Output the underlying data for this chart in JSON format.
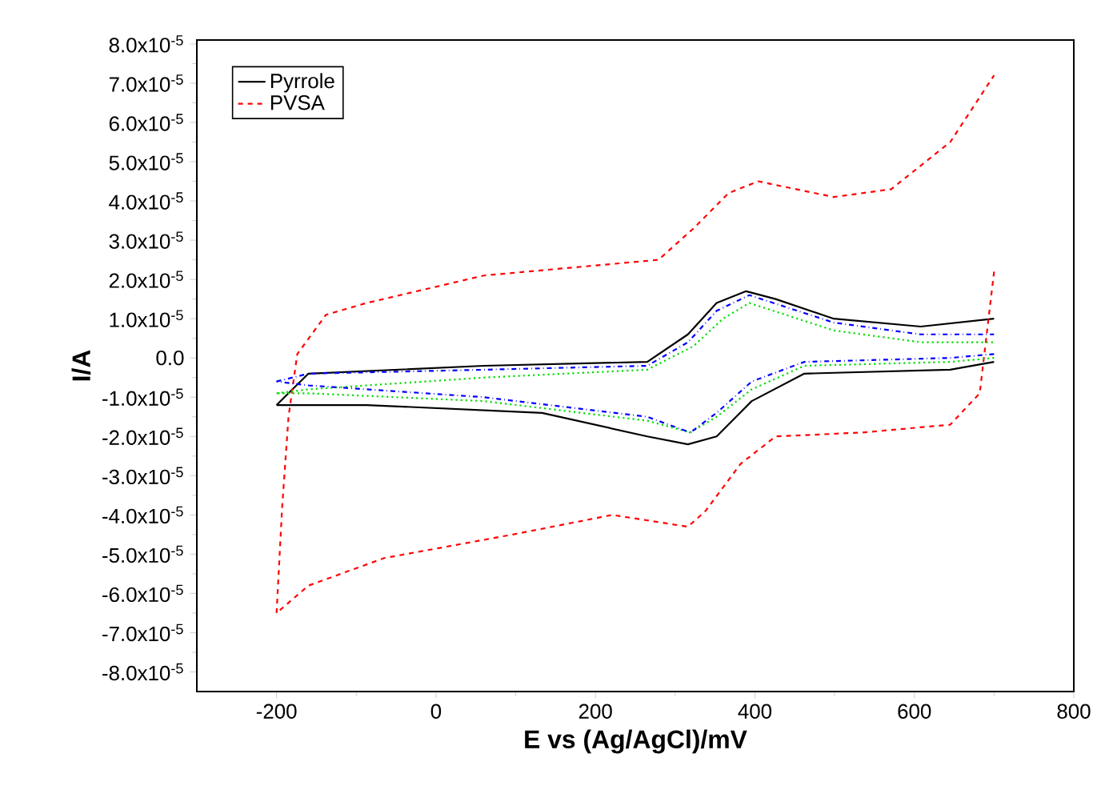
{
  "chart_data": {
    "type": "line",
    "xlabel": "E vs (Ag/AgCl)/mV",
    "ylabel": "I/A",
    "xlim": [
      -300,
      800
    ],
    "xticks": [
      -200,
      0,
      200,
      400,
      600,
      800
    ],
    "ylim": [
      -8.5e-05,
      8.1e-05
    ],
    "yticks": [
      {
        "value": -8e-05,
        "label": "-8.0x10$^{-5}$"
      },
      {
        "value": -7e-05,
        "label": "-7.0x10$^{-5}$"
      },
      {
        "value": -6e-05,
        "label": "-6.0x10$^{-5}$"
      },
      {
        "value": -5e-05,
        "label": "-5.0x10$^{-5}$"
      },
      {
        "value": -4e-05,
        "label": "-4.0x10$^{-5}$"
      },
      {
        "value": -3e-05,
        "label": "-3.0x10$^{-5}$"
      },
      {
        "value": -2e-05,
        "label": "-2.0x10$^{-5}$"
      },
      {
        "value": -1e-05,
        "label": "-1.0x10$^{-5}$"
      },
      {
        "value": 0,
        "label": "0.0"
      },
      {
        "value": 1e-05,
        "label": "1.0x10$^{-5}$"
      },
      {
        "value": 2e-05,
        "label": "2.0x10$^{-5}$"
      },
      {
        "value": 3e-05,
        "label": "3.0x10$^{-5}$"
      },
      {
        "value": 4e-05,
        "label": "4.0x10$^{-5}$"
      },
      {
        "value": 5e-05,
        "label": "5.0x10$^{-5}$"
      },
      {
        "value": 6e-05,
        "label": "6.0x10$^{-5}$"
      },
      {
        "value": 7e-05,
        "label": "7.0x10$^{-5}$"
      },
      {
        "value": 8e-05,
        "label": "8.0x10$^{-5}$"
      }
    ],
    "legend": "top left",
    "marker": "none",
    "series": [
      {
        "name": "Pyrrole",
        "color": "#000000",
        "line_style": "solid",
        "x": [
          -200,
          -160,
          60,
          265,
          316,
          352,
          389,
          426,
          499,
          608,
          700
        ],
        "values": [
          -1.2e-05,
          -4e-06,
          -2e-06,
          -1e-06,
          6e-06,
          1.4e-05,
          1.7e-05,
          1.5e-05,
          1e-05,
          8e-06,
          1e-05
        ]
      },
      {
        "color": "#000000",
        "line_style": "solid",
        "x": [
          700,
          645,
          462,
          396,
          352,
          316,
          265,
          133,
          -87,
          -200
        ],
        "values": [
          -1e-06,
          -3e-06,
          -4e-06,
          -1.1e-05,
          -2e-05,
          -2.2e-05,
          -2e-05,
          -1.4e-05,
          -1.2e-05,
          -1.2e-05
        ]
      },
      {
        "name": "PVSA",
        "color": "#ff0000",
        "line_style": "dashed",
        "x": [
          -200,
          -193,
          -185,
          -174,
          -138,
          -87,
          60,
          279,
          323,
          367,
          404,
          499,
          571,
          645,
          700
        ],
        "values": [
          -6.5e-05,
          -3.8e-05,
          -1.5e-05,
          1e-06,
          1.1e-05,
          1.4e-05,
          2.1e-05,
          2.5e-05,
          3.3e-05,
          4.2e-05,
          4.5e-05,
          4.1e-05,
          4.3e-05,
          5.5e-05,
          7.2e-05
        ]
      },
      {
        "color": "#ff0000",
        "line_style": "dashed",
        "x": [
          700,
          682,
          645,
          535,
          426,
          382,
          338,
          316,
          221,
          96,
          -65,
          -160,
          -200
        ],
        "values": [
          2.2e-05,
          -9e-06,
          -1.7e-05,
          -1.9e-05,
          -2e-05,
          -2.7e-05,
          -3.9e-05,
          -4.3e-05,
          -4e-05,
          -4.5e-05,
          -5.1e-05,
          -5.8e-05,
          -6.5e-05
        ]
      },
      {
        "color": "#00dd00",
        "line_style": "dotted",
        "x": [
          -200,
          -160,
          60,
          265,
          323,
          360,
          393,
          499,
          608,
          700
        ],
        "values": [
          -9e-06,
          -8e-06,
          -5e-06,
          -3e-06,
          3e-06,
          1e-05,
          1.4e-05,
          7e-06,
          4e-06,
          4e-06
        ]
      },
      {
        "color": "#00dd00",
        "line_style": "dotted",
        "x": [
          700,
          645,
          462,
          396,
          352,
          319,
          265,
          60,
          -160,
          -200
        ],
        "values": [
          0,
          -1e-06,
          -2e-06,
          -8e-06,
          -1.5e-05,
          -1.9e-05,
          -1.6e-05,
          -1.1e-05,
          -9e-06,
          -9e-06
        ]
      },
      {
        "color": "#0000ff",
        "line_style": "dashdot",
        "x": [
          -200,
          -160,
          60,
          265,
          316,
          352,
          393,
          499,
          608,
          700
        ],
        "values": [
          -6e-06,
          -4e-06,
          -3e-06,
          -2e-06,
          4e-06,
          1.2e-05,
          1.6e-05,
          9e-06,
          6e-06,
          6e-06
        ]
      },
      {
        "color": "#0000ff",
        "line_style": "dashdot",
        "x": [
          700,
          645,
          462,
          396,
          352,
          319,
          265,
          60,
          -160,
          -200
        ],
        "values": [
          1e-06,
          0,
          -1e-06,
          -6e-06,
          -1.4e-05,
          -1.9e-05,
          -1.5e-05,
          -1e-05,
          -7e-06,
          -6e-06
        ]
      }
    ]
  }
}
